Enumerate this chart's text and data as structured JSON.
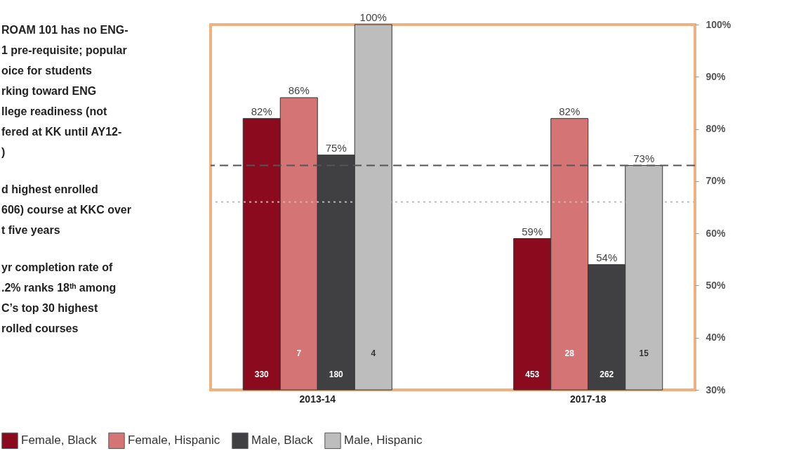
{
  "chart_data": {
    "type": "bar",
    "categories": [
      "2013-14",
      "2017-18"
    ],
    "series": [
      {
        "name": "Female, Black",
        "color": "#8b0a1e",
        "values": [
          82,
          59
        ],
        "value_labels": [
          "82%",
          "59%"
        ]
      },
      {
        "name": "Female, Hispanic",
        "color": "#d47474",
        "values": [
          86,
          82
        ],
        "value_labels": [
          "86%",
          "82%"
        ]
      },
      {
        "name": "Male, Black",
        "color": "#404042",
        "values": [
          75,
          54
        ],
        "value_labels": [
          "75%",
          "54%"
        ]
      },
      {
        "name": "Male, Hispanic",
        "color": "#bdbdbd",
        "values": [
          100,
          73
        ],
        "value_labels": [
          "100%",
          "73%"
        ]
      }
    ],
    "ylim": [
      30,
      100
    ],
    "yticks": [
      {
        "value": 30,
        "label": "30%"
      },
      {
        "value": 40,
        "label": "40%"
      },
      {
        "value": 50,
        "label": "50%"
      },
      {
        "value": 60,
        "label": "60%"
      },
      {
        "value": 70,
        "label": "70%"
      },
      {
        "value": 80,
        "label": "80%"
      },
      {
        "value": 90,
        "label": "90%"
      },
      {
        "value": 100,
        "label": "100%"
      }
    ],
    "ref_lines": [
      {
        "axis": "y",
        "value": 73,
        "color": "#555555",
        "line_style": "dashed"
      },
      {
        "axis": "y",
        "value": 66,
        "color": "#bbbbbb",
        "line_style": "dotted"
      }
    ],
    "annotations": [
      "ROAM 101 has no ENG-\n1 pre-requisite; popular\noice for students\nrking toward ENG\nllege readiness (not\nfered at KK until AY12-\n)",
      "d highest enrolled\n606) course at KKC over\nt five years",
      "yr completion rate of\n.2% ranks 18ᵗʰ among\nC’s top 30 highest\nrolled courses",
      "330",
      "7",
      "180",
      "4",
      "453",
      "28",
      "262",
      "15"
    ],
    "legend": "bottom left",
    "grid": false
  }
}
